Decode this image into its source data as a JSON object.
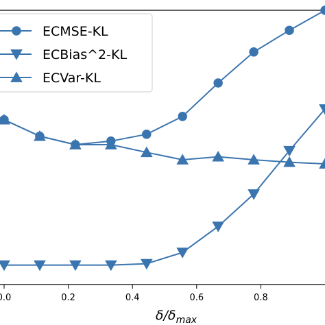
{
  "chart_data": {
    "type": "line",
    "xlabel": "δ/δ",
    "xlabel_sub": "max",
    "ylabel": "",
    "title": "",
    "xlim": [
      0.0,
      1.0
    ],
    "ylim": [
      0.0,
      1.0
    ],
    "x_ticks": [
      0.0,
      0.2,
      0.4,
      0.6,
      0.8
    ],
    "x_tick_labels": [
      "0.0",
      "0.2",
      "0.4",
      "0.6",
      "0.8"
    ],
    "grid": false,
    "legend_position": "top-left",
    "color": "#3b75af",
    "x": [
      0.0,
      0.111,
      0.222,
      0.333,
      0.444,
      0.556,
      0.667,
      0.778,
      0.889,
      1.0
    ],
    "series": [
      {
        "name": "ECMSE-KL",
        "marker": "circle",
        "values": [
          0.601,
          0.541,
          0.51,
          0.523,
          0.548,
          0.613,
          0.735,
          0.848,
          0.927,
          1.0
        ]
      },
      {
        "name": "ECBias^2-KL",
        "marker": "triangle-down",
        "values": [
          0.071,
          0.071,
          0.071,
          0.071,
          0.076,
          0.117,
          0.212,
          0.33,
          0.488,
          0.64
        ]
      },
      {
        "name": "ECVar-KL",
        "marker": "triangle-up",
        "values": [
          0.601,
          0.541,
          0.51,
          0.51,
          0.482,
          0.455,
          0.466,
          0.455,
          0.446,
          0.44
        ]
      }
    ]
  }
}
